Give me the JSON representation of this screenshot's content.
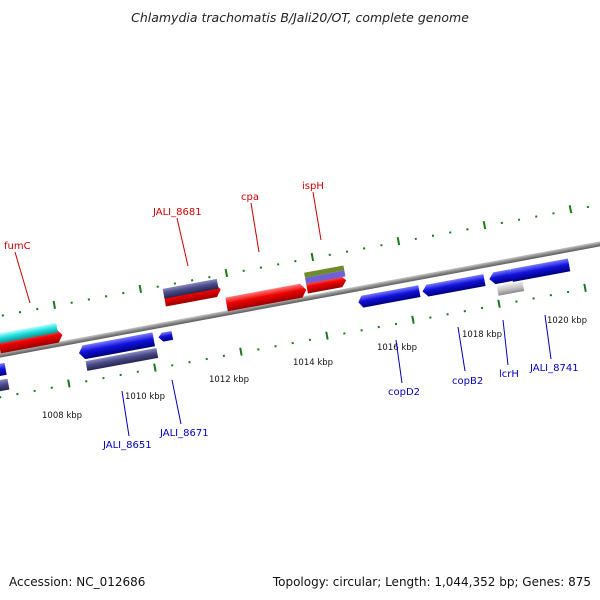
{
  "title": "Chlamydia trachomatis B/Jali20/OT, complete genome",
  "footer": {
    "accession": "Accession: NC_012686",
    "summary": "Topology: circular; Length: 1,044,352 bp; Genes: 875"
  },
  "colors": {
    "backbone": "#8a8a8a",
    "tick": "#1a7a1a",
    "cds_forward": "#ee0000",
    "cds_reverse": "#1111dd",
    "cog_purple": "#4a4a88",
    "rna_cyan": "#22e0e0",
    "olive": "#6e8a2a",
    "lavender": "#7060d8",
    "gray_feature": "#c4c4c4",
    "label_top": "#cc0000",
    "label_bottom": "#0000bb"
  },
  "scale": {
    "unit": "kbp",
    "labels": [
      {
        "kbp": 1008,
        "text": "1008 kbp"
      },
      {
        "kbp": 1010,
        "text": "1010 kbp"
      },
      {
        "kbp": 1012,
        "text": "1012 kbp"
      },
      {
        "kbp": 1014,
        "text": "1014 kbp"
      },
      {
        "kbp": 1016,
        "text": "1016 kbp"
      },
      {
        "kbp": 1018,
        "text": "1018 kbp"
      },
      {
        "kbp": 1020,
        "text": "1020 kbp"
      }
    ]
  },
  "gene_labels_forward": [
    {
      "name": "fumC"
    },
    {
      "name": "JALI_8681"
    },
    {
      "name": "cpa"
    },
    {
      "name": "ispH"
    }
  ],
  "gene_labels_reverse": [
    {
      "name": "JALI_8651"
    },
    {
      "name": "JALI_8671"
    },
    {
      "name": "copD2"
    },
    {
      "name": "copB2"
    },
    {
      "name": "lcrH"
    },
    {
      "name": "JALI_8741"
    }
  ]
}
